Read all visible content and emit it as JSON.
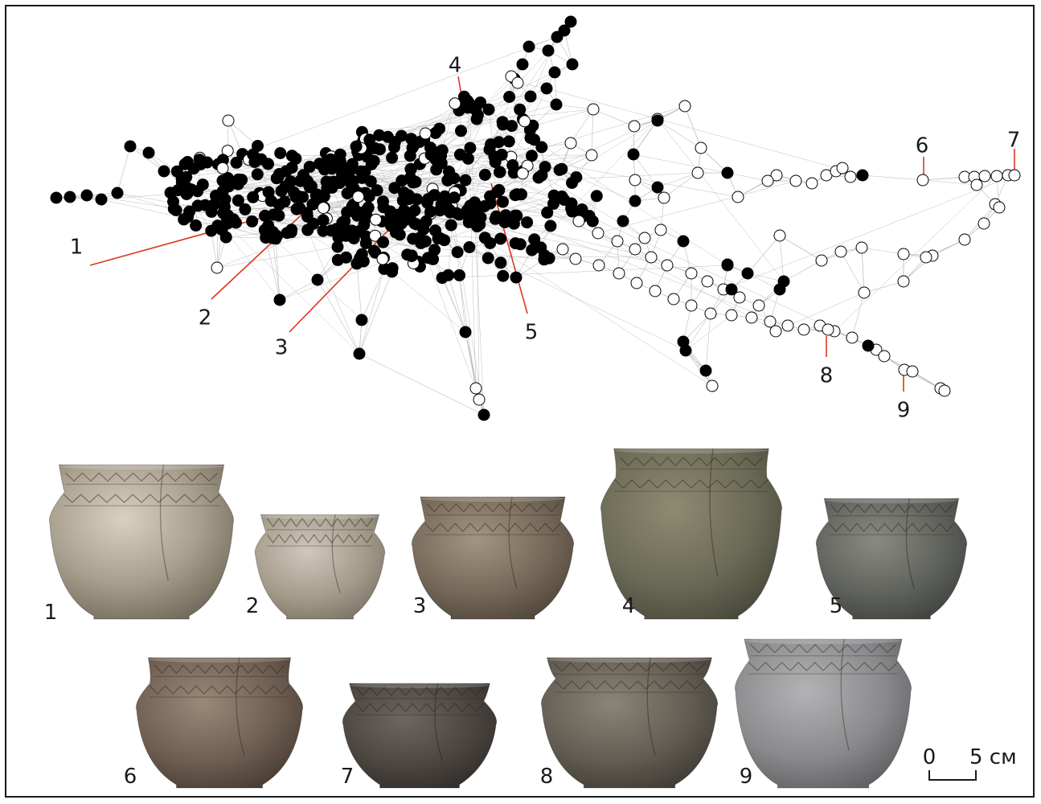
{
  "network": {
    "callouts": [
      "1",
      "2",
      "3",
      "4",
      "5",
      "6",
      "7",
      "8",
      "9"
    ],
    "colors": {
      "edge": "#bdbdbd",
      "leader": "#d9381e",
      "filled": "#000000",
      "open": "#ffffff",
      "outline": "#000000"
    }
  },
  "vessels": {
    "labels": [
      "1",
      "2",
      "3",
      "4",
      "5",
      "6",
      "7",
      "8",
      "9"
    ]
  },
  "scale": {
    "zero": "0",
    "max": "5 см"
  }
}
